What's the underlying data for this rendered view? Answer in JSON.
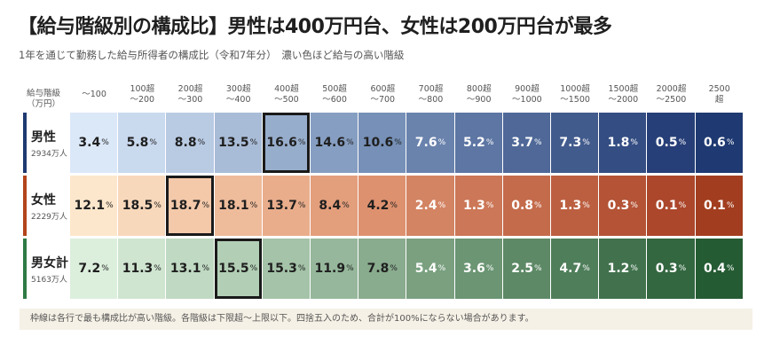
{
  "title": "【給与階級別の構成比】男性は400万円台、女性は200万円台が最多",
  "subtitle": "1年を通じて勤務した給与所得者の構成比（令和7年分）　濃い色ほど給与の高い階級",
  "note": "枠線は各行で最も構成比が高い階級。各階級は下限超〜上限以下。四捨五入のため、合計が100%にならない場合があります。",
  "corner_label": [
    "給与階級",
    "（万円）"
  ],
  "percent_symbol": "%",
  "chart_data": {
    "type": "table",
    "title": "【給与階級別の構成比】男性は400万円台、女性は200万円台が最多",
    "categories": [
      [
        "〜100"
      ],
      [
        "100超",
        "〜200"
      ],
      [
        "200超",
        "〜300"
      ],
      [
        "300超",
        "〜400"
      ],
      [
        "400超",
        "〜500"
      ],
      [
        "500超",
        "〜600"
      ],
      [
        "600超",
        "〜700"
      ],
      [
        "700超",
        "〜800"
      ],
      [
        "800超",
        "〜900"
      ],
      [
        "900超",
        "〜1000"
      ],
      [
        "1000超",
        "〜1500"
      ],
      [
        "1500超",
        "〜2000"
      ],
      [
        "2000超",
        "〜2500"
      ],
      [
        "2500",
        "超"
      ]
    ],
    "series": [
      {
        "name": "男性",
        "count": "2934万人",
        "accent": "#1f3a72",
        "palette": [
          "#dbe8f8",
          "#c9d9ee",
          "#b9cbe3",
          "#a9bcd7",
          "#97adcc",
          "#869ec1",
          "#7690b7",
          "#6a83ad",
          "#5d76a3",
          "#4f6898",
          "#425b8d",
          "#344d83",
          "#273f78",
          "#1f3a72"
        ],
        "values": [
          "3.4",
          "5.8",
          "8.8",
          "13.5",
          "16.6",
          "14.6",
          "10.6",
          "7.6",
          "5.2",
          "3.7",
          "7.3",
          "1.8",
          "0.5",
          "0.6"
        ],
        "highlight_index": 4
      },
      {
        "name": "女性",
        "count": "2229万人",
        "accent": "#b3441b",
        "palette": [
          "#fde7cc",
          "#f8d8bb",
          "#f3c9aa",
          "#eebb9b",
          "#e9ad8b",
          "#e39e7c",
          "#dd916f",
          "#d38463",
          "#cc7757",
          "#c46b4b",
          "#bc5f40",
          "#b45336",
          "#ac472b",
          "#a23e1f"
        ],
        "values": [
          "12.1",
          "18.5",
          "18.7",
          "18.1",
          "13.7",
          "8.4",
          "4.2",
          "2.4",
          "1.3",
          "0.8",
          "1.3",
          "0.3",
          "0.1",
          "0.1"
        ],
        "highlight_index": 2
      },
      {
        "name": "男女計",
        "count": "5163万人",
        "accent": "#2f7a45",
        "palette": [
          "#dcefdd",
          "#cfe5d0",
          "#bfd9c2",
          "#b2cfb5",
          "#a4c3a8",
          "#96b79b",
          "#89ab8e",
          "#7aa080",
          "#6b9573",
          "#5d8966",
          "#4f7e5a",
          "#41724d",
          "#336740",
          "#255b33"
        ],
        "values": [
          "7.2",
          "11.3",
          "13.1",
          "15.5",
          "15.3",
          "11.9",
          "7.8",
          "5.4",
          "3.6",
          "2.5",
          "4.7",
          "1.2",
          "0.3",
          "0.4"
        ],
        "highlight_index": 3
      }
    ]
  }
}
